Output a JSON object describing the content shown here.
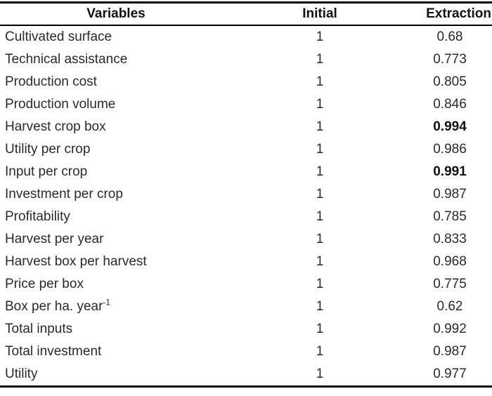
{
  "table": {
    "columns": [
      {
        "label": "Variables"
      },
      {
        "label": "Initial"
      },
      {
        "label": "Extraction"
      }
    ],
    "rows": [
      {
        "variable": "Cultivated surface",
        "initial": "1",
        "extraction": "0.68",
        "bold": false
      },
      {
        "variable": "Technical assistance",
        "initial": "1",
        "extraction": "0.773",
        "bold": false
      },
      {
        "variable": "Production cost",
        "initial": "1",
        "extraction": "0.805",
        "bold": false
      },
      {
        "variable": "Production volume",
        "initial": "1",
        "extraction": "0.846",
        "bold": false
      },
      {
        "variable": "Harvest crop box",
        "initial": "1",
        "extraction": "0.994",
        "bold": true
      },
      {
        "variable": "Utility per crop",
        "initial": "1",
        "extraction": "0.986",
        "bold": false
      },
      {
        "variable": "Input per crop",
        "initial": "1",
        "extraction": "0.991",
        "bold": true
      },
      {
        "variable": "Investment per crop",
        "initial": "1",
        "extraction": "0.987",
        "bold": false
      },
      {
        "variable": "Profitability",
        "initial": "1",
        "extraction": "0.785",
        "bold": false
      },
      {
        "variable": "Harvest per year",
        "initial": "1",
        "extraction": "0.833",
        "bold": false
      },
      {
        "variable": "Harvest box per harvest",
        "initial": "1",
        "extraction": "0.968",
        "bold": false
      },
      {
        "variable": "Price per box",
        "initial": "1",
        "extraction": "0.775",
        "bold": false
      },
      {
        "variable": "Box per ha. year",
        "variable_sup": "-1",
        "initial": "1",
        "extraction": "0.62",
        "bold": false
      },
      {
        "variable": "Total inputs",
        "initial": "1",
        "extraction": "0.992",
        "bold": false
      },
      {
        "variable": "Total investment",
        "initial": "1",
        "extraction": "0.987",
        "bold": false
      },
      {
        "variable": "Utility",
        "initial": "1",
        "extraction": "0.977",
        "bold": false
      }
    ]
  },
  "colors": {
    "background": "#ffffff",
    "text": "#2a2a2a",
    "header_text": "#111111",
    "rule": "#000000"
  }
}
